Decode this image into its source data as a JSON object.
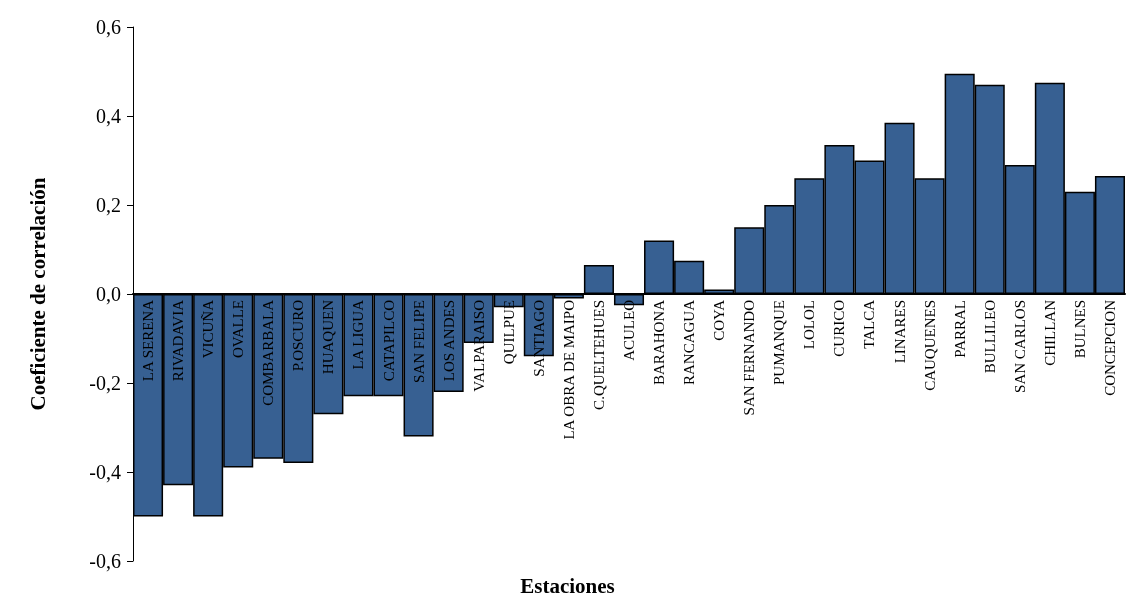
{
  "chart_data": {
    "type": "bar",
    "xlabel": "Estaciones",
    "ylabel": "Coeficiente de correlación",
    "categories": [
      "LA SERENA",
      "RIVADAVIA",
      "VICUÑA",
      "OVALLE",
      "COMBARBALA",
      "P.OSCURO",
      "HUAQUEN",
      "LA LIGUA",
      "CATAPILCO",
      "SAN FELIPE",
      "LOS ANDES",
      "VALPARAISO",
      "QUILPUE",
      "SANTIAGO",
      "LA OBRA DE MAIPO",
      "C.QUELTEHUES",
      "ACULEO",
      "BARAHONA",
      "RANCAGUA",
      "COYA",
      "SAN FERNANDO",
      "PUMANQUE",
      "LOLOL",
      "CURICO",
      "TALCA",
      "LINARES",
      "CAUQUENES",
      "PARRAL",
      "BULLILEO",
      "SAN CARLOS",
      "CHILLAN",
      "BULNES",
      "CONCEPCION"
    ],
    "values": [
      -0.5,
      -0.43,
      -0.5,
      -0.39,
      -0.37,
      -0.38,
      -0.27,
      -0.23,
      -0.23,
      -0.32,
      -0.22,
      -0.11,
      -0.03,
      -0.14,
      -0.01,
      0.065,
      -0.025,
      0.12,
      0.075,
      0.01,
      0.15,
      0.2,
      0.26,
      0.335,
      0.3,
      0.385,
      0.26,
      0.495,
      0.47,
      0.29,
      0.475,
      0.23,
      0.265
    ],
    "color": "#376092",
    "ylim": [
      -0.6,
      0.6
    ],
    "yticks": [
      {
        "value": -0.6,
        "label": "-0,6"
      },
      {
        "value": -0.4,
        "label": "-0,4"
      },
      {
        "value": -0.2,
        "label": "-0,2"
      },
      {
        "value": 0,
        "label": "0,0"
      },
      {
        "value": 0.2,
        "label": "0,2"
      },
      {
        "value": 0.4,
        "label": "0,4"
      },
      {
        "value": 0.6,
        "label": "0,6"
      }
    ],
    "grid": false
  }
}
